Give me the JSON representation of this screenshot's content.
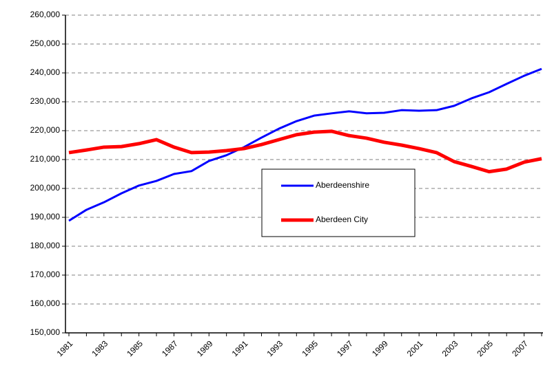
{
  "chart_data": {
    "type": "line",
    "categories": [
      "1981",
      null,
      "1983",
      null,
      "1985",
      null,
      "1987",
      null,
      "1989",
      null,
      "1991",
      null,
      "1993",
      null,
      "1995",
      null,
      "1997",
      null,
      "1999",
      null,
      "2001",
      null,
      "2003",
      null,
      "2005",
      null,
      "2007",
      null
    ],
    "series": [
      {
        "name": "Aberdeenshire",
        "color": "#0000ff",
        "values": [
          188800,
          192600,
          195200,
          198300,
          201000,
          202600,
          205000,
          206000,
          209500,
          211500,
          214300,
          217600,
          220700,
          223300,
          225200,
          226000,
          226700,
          226000,
          226200,
          227100,
          226900,
          227100,
          228600,
          231200,
          233300,
          236200,
          239000,
          241400
        ]
      },
      {
        "name": "Aberdeen City",
        "color": "#ff0000",
        "values": [
          212400,
          213300,
          214300,
          214500,
          215500,
          216900,
          214300,
          212400,
          212600,
          213100,
          213800,
          215200,
          216900,
          218600,
          219500,
          219800,
          218300,
          217400,
          216000,
          215000,
          213800,
          212400,
          209300,
          207600,
          205800,
          206700,
          209100,
          210300
        ]
      }
    ],
    "ylim": [
      150000,
      260000
    ],
    "yticks": [
      {
        "value": 150000,
        "label": "150,000"
      },
      {
        "value": 160000,
        "label": "160,000"
      },
      {
        "value": 170000,
        "label": "170,000"
      },
      {
        "value": 180000,
        "label": "180,000"
      },
      {
        "value": 190000,
        "label": "190,000"
      },
      {
        "value": 200000,
        "label": "200,000"
      },
      {
        "value": 210000,
        "label": "210,000"
      },
      {
        "value": 220000,
        "label": "220,000"
      },
      {
        "value": 230000,
        "label": "230,000"
      },
      {
        "value": 240000,
        "label": "240,000"
      },
      {
        "value": 250000,
        "label": "250,000"
      },
      {
        "value": 260000,
        "label": "260,000"
      }
    ],
    "grid": true,
    "legend": "center"
  }
}
